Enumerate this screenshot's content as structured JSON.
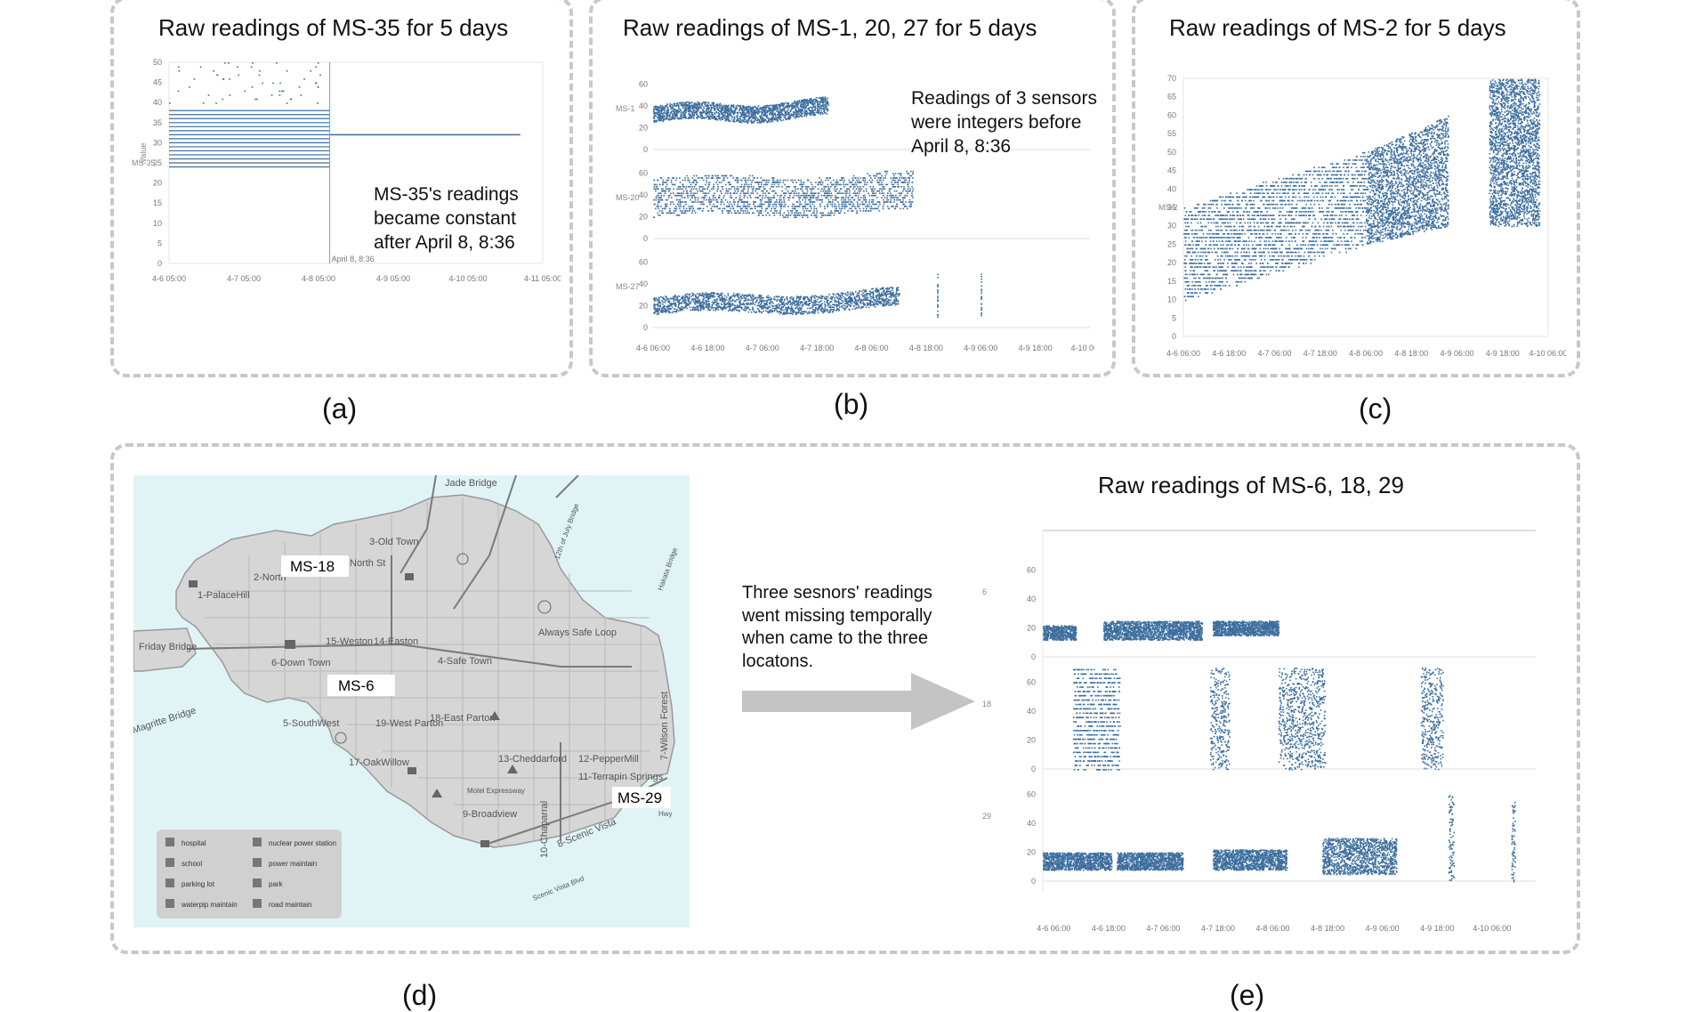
{
  "panels": {
    "a": {
      "title": "Raw readings of MS-35 for 5 days",
      "label": "(a)",
      "annotation": [
        "MS-35's readings",
        "became constant",
        "after April 8, 8:36"
      ],
      "marker": "April 8, 8:36"
    },
    "b": {
      "title": "Raw readings of MS-1, 20, 27 for 5 days",
      "label": "(b)",
      "annotation": [
        "Readings of 3 sensors",
        "were integers before",
        "April 8, 8:36"
      ]
    },
    "c": {
      "title": "Raw readings of MS-2 for 5 days",
      "label": "(c)"
    },
    "d": {
      "label": "(d)",
      "sensor_labels": [
        "MS-18",
        "MS-6",
        "MS-29"
      ],
      "places": [
        "Jade Bridge",
        "3-Old Town",
        "2-North",
        "1-PalaceHill",
        "North St",
        "Friday Bridge",
        "Magritte Bridge",
        "15-Weston",
        "14-Easton",
        "6-Down Town",
        "4-Safe Town",
        "Always Safe Loop",
        "5-SouthWest",
        "19-West Parton",
        "18-East Parton",
        "17-OakWillow",
        "13-Cheddarford",
        "12-PepperMill",
        "11-Terrapin Springs",
        "9-Broadview",
        "10-Chaparral",
        "8-Scenic Vista",
        "7-Wilson Forest",
        "Scenic Vista Blvd",
        "Motel Expressway",
        "Hwy",
        "12th of July Bridge",
        "Hakata Bridge"
      ],
      "legend": [
        {
          "icon": "hospital-icon",
          "label": "hospital"
        },
        {
          "icon": "nuclear-icon",
          "label": "nuclear power station"
        },
        {
          "icon": "school-icon",
          "label": "school"
        },
        {
          "icon": "power-maintain-icon",
          "label": "power maintain"
        },
        {
          "icon": "parking-icon",
          "label": "parking lot"
        },
        {
          "icon": "park-icon",
          "label": "park"
        },
        {
          "icon": "waterpip-icon",
          "label": "waterpip maintain"
        },
        {
          "icon": "road-maintain-icon",
          "label": "road maintain"
        }
      ]
    },
    "e": {
      "title": "Raw readings of MS-6, 18, 29",
      "label": "(e)",
      "arrow_text": [
        "Three sesnors' readings",
        "went missing temporally",
        "when came to the three",
        "locatons."
      ]
    }
  },
  "colors": {
    "dots": "#3c6e9e",
    "border": "#c8c8c8",
    "map_water": "#e0f4f6",
    "map_land": "#d4d4d4"
  },
  "chart_data": [
    {
      "id": "a",
      "type": "scatter",
      "title": "Raw readings of MS-35 for 5 days",
      "ylabel": "Value",
      "row_labels": [
        "MS-35"
      ],
      "ylim": [
        0,
        50
      ],
      "yticks": [
        0,
        5,
        10,
        15,
        20,
        25,
        30,
        35,
        40,
        45,
        50
      ],
      "xticks": [
        "4-6 05:00",
        "4-7 05:00",
        "4-8 05:00",
        "4-9 05:00",
        "4-10 05:00",
        "4-11 05:00"
      ],
      "xrange": [
        0,
        5
      ],
      "series": [
        {
          "segment": "before April 8, 8:36",
          "x": [
            0,
            2.15
          ],
          "integer_levels": [
            24,
            25,
            26,
            27,
            28,
            29,
            30,
            31,
            32,
            33,
            34,
            35,
            36,
            37,
            38
          ],
          "outliers": [
            40,
            41,
            42,
            43,
            44,
            45,
            46,
            47,
            48,
            49,
            50
          ]
        },
        {
          "segment": "after April 8, 8:36",
          "x": [
            2.15,
            4.7
          ],
          "constant": 32
        }
      ]
    },
    {
      "id": "b",
      "type": "scatter",
      "title": "Raw readings of MS-1, 20, 27 for 5 days",
      "row_labels": [
        "MS-1",
        "MS-20",
        "MS-27"
      ],
      "yticks": [
        0,
        20,
        40,
        60
      ],
      "xticks": [
        "4-6 06:00",
        "4-6 18:00",
        "4-7 06:00",
        "4-7 18:00",
        "4-8 06:00",
        "4-8 18:00",
        "4-9 06:00",
        "4-9 18:00",
        "4-10 06:00"
      ],
      "xrange": [
        0,
        8
      ],
      "series": [
        {
          "name": "MS-1",
          "x": [
            0,
            3.2
          ],
          "band_min": [
            25,
            30
          ],
          "band_max": [
            40,
            46
          ]
        },
        {
          "name": "MS-20",
          "x": [
            0,
            4.75
          ],
          "band_min": [
            20,
            25
          ],
          "band_max": [
            55,
            60
          ]
        },
        {
          "name": "MS-27",
          "x": [
            0,
            4.5
          ],
          "band_min": [
            12,
            18
          ],
          "band_max": [
            28,
            35
          ],
          "sparse_x": [
            5.2,
            6.0
          ]
        }
      ]
    },
    {
      "id": "c",
      "type": "scatter",
      "title": "Raw readings of MS-2 for 5 days",
      "row_labels": [
        "MS-2"
      ],
      "ylim": [
        0,
        70
      ],
      "yticks": [
        0,
        5,
        10,
        15,
        20,
        25,
        30,
        35,
        40,
        45,
        50,
        55,
        60,
        65,
        70
      ],
      "xticks": [
        "4-6 06:00",
        "4-6 18:00",
        "4-7 06:00",
        "4-7 18:00",
        "4-8 06:00",
        "4-8 18:00",
        "4-9 06:00",
        "4-9 18:00",
        "4-10 06:00"
      ],
      "xrange": [
        0,
        8
      ],
      "series": [
        {
          "segment": "integer trend",
          "x": [
            0,
            4.0
          ],
          "y_start": [
            10,
            35
          ],
          "y_end": [
            25,
            50
          ]
        },
        {
          "segment": "noisy trend",
          "x": [
            4.0,
            5.8
          ],
          "y_start": [
            25,
            50
          ],
          "y_end": [
            30,
            60
          ]
        },
        {
          "segment": "late cluster",
          "x": [
            6.7,
            7.8
          ],
          "y": [
            30,
            70
          ]
        }
      ]
    },
    {
      "id": "e",
      "type": "scatter",
      "title": "Raw readings of MS-6, 18, 29",
      "row_labels": [
        "6",
        "18",
        "29"
      ],
      "yticks": [
        0,
        20,
        40,
        60
      ],
      "xticks": [
        "4-6 06:00",
        "4-6 18:00",
        "4-7 06:00",
        "4-7 18:00",
        "4-8 06:00",
        "4-8 18:00",
        "4-9 06:00",
        "4-9 18:00",
        "4-10 06:00"
      ],
      "xrange": [
        0,
        8
      ],
      "series": [
        {
          "name": "6",
          "blocks": [
            [
              0,
              0.6,
              12,
              22
            ],
            [
              1.1,
              2.9,
              12,
              25
            ],
            [
              3.1,
              4.3,
              15,
              25
            ]
          ]
        },
        {
          "name": "18",
          "blocks": [
            [
              0.55,
              1.4,
              0,
              70
            ],
            [
              3.05,
              3.4,
              0,
              70
            ],
            [
              4.3,
              5.15,
              0,
              70
            ],
            [
              6.9,
              7.3,
              0,
              70
            ]
          ]
        },
        {
          "name": "29",
          "blocks": [
            [
              0,
              1.25,
              8,
              20
            ],
            [
              1.35,
              2.55,
              8,
              20
            ],
            [
              3.1,
              4.45,
              8,
              22
            ],
            [
              5.1,
              6.45,
              5,
              30
            ],
            [
              7.4,
              7.5,
              0,
              60
            ],
            [
              8.55,
              8.62,
              0,
              55
            ]
          ]
        }
      ]
    }
  ]
}
